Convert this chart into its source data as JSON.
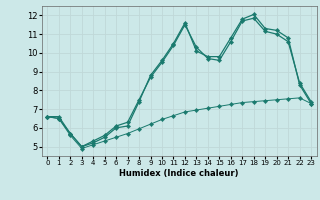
{
  "title": "",
  "xlabel": "Humidex (Indice chaleur)",
  "background_color": "#cce8e8",
  "grid_color": "#c0d8d8",
  "line_color": "#1a7a6e",
  "xlim": [
    -0.5,
    23.5
  ],
  "ylim": [
    4.5,
    12.5
  ],
  "xticks": [
    0,
    1,
    2,
    3,
    4,
    5,
    6,
    7,
    8,
    9,
    10,
    11,
    12,
    13,
    14,
    15,
    16,
    17,
    18,
    19,
    20,
    21,
    22,
    23
  ],
  "yticks": [
    5,
    6,
    7,
    8,
    9,
    10,
    11,
    12
  ],
  "line1_x": [
    0,
    1,
    2,
    3,
    4,
    5,
    6,
    7,
    8,
    9,
    10,
    11,
    12,
    13,
    14,
    15,
    16,
    17,
    18,
    19,
    20,
    21,
    22,
    23
  ],
  "line1_y": [
    6.6,
    6.6,
    5.7,
    5.0,
    5.2,
    5.5,
    6.0,
    6.1,
    7.4,
    8.8,
    9.6,
    10.5,
    11.6,
    10.1,
    9.8,
    9.8,
    10.8,
    11.8,
    12.05,
    11.3,
    11.2,
    10.8,
    8.3,
    7.3
  ],
  "line2_x": [
    0,
    1,
    2,
    3,
    4,
    5,
    6,
    7,
    8,
    9,
    10,
    11,
    12,
    13,
    14,
    15,
    16,
    17,
    18,
    19,
    20,
    21,
    22,
    23
  ],
  "line2_y": [
    6.6,
    6.5,
    5.7,
    5.0,
    5.3,
    5.6,
    6.1,
    6.3,
    7.5,
    8.7,
    9.5,
    10.4,
    11.5,
    10.3,
    9.7,
    9.6,
    10.6,
    11.7,
    11.85,
    11.15,
    11.0,
    10.6,
    8.4,
    7.4
  ],
  "line3_x": [
    0,
    1,
    2,
    3,
    4,
    5,
    6,
    7,
    8,
    9,
    10,
    11,
    12,
    13,
    14,
    15,
    16,
    17,
    18,
    19,
    20,
    21,
    22,
    23
  ],
  "line3_y": [
    6.6,
    6.5,
    5.6,
    4.9,
    5.1,
    5.3,
    5.5,
    5.7,
    5.95,
    6.2,
    6.45,
    6.65,
    6.85,
    6.95,
    7.05,
    7.15,
    7.25,
    7.35,
    7.4,
    7.45,
    7.5,
    7.55,
    7.6,
    7.3
  ]
}
